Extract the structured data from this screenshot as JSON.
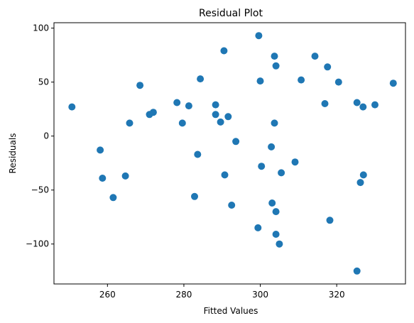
{
  "chart_data": {
    "type": "scatter",
    "title": "Residual Plot",
    "xlabel": "Fitted Values",
    "ylabel": "Residuals",
    "xlim": [
      246,
      338
    ],
    "ylim": [
      -137,
      105
    ],
    "x_ticks": [
      260,
      280,
      300,
      320
    ],
    "y_ticks": [
      100,
      50,
      0,
      -50,
      -100
    ],
    "grid": false,
    "marker_color": "#1f77b4",
    "series": [
      {
        "points": [
          [
            250.7,
            27
          ],
          [
            258.1,
            -13
          ],
          [
            258.7,
            -39
          ],
          [
            261.5,
            -57
          ],
          [
            264.7,
            -37
          ],
          [
            265.8,
            12
          ],
          [
            268.5,
            47
          ],
          [
            271.0,
            20
          ],
          [
            272.0,
            22
          ],
          [
            278.2,
            31
          ],
          [
            279.6,
            12
          ],
          [
            281.3,
            28
          ],
          [
            282.8,
            -56
          ],
          [
            283.6,
            -17
          ],
          [
            284.3,
            53
          ],
          [
            288.3,
            29
          ],
          [
            288.3,
            20
          ],
          [
            289.6,
            13
          ],
          [
            290.5,
            79
          ],
          [
            290.7,
            -36
          ],
          [
            291.6,
            18
          ],
          [
            292.5,
            -64
          ],
          [
            293.6,
            -5
          ],
          [
            299.4,
            -85
          ],
          [
            299.6,
            93
          ],
          [
            300.0,
            51
          ],
          [
            300.3,
            -28
          ],
          [
            302.9,
            -10
          ],
          [
            303.1,
            -62
          ],
          [
            303.7,
            74
          ],
          [
            303.7,
            12
          ],
          [
            304.1,
            65
          ],
          [
            304.1,
            -70
          ],
          [
            304.1,
            -91
          ],
          [
            305.0,
            -100
          ],
          [
            305.5,
            -34
          ],
          [
            309.1,
            -24
          ],
          [
            310.7,
            52
          ],
          [
            314.3,
            74
          ],
          [
            316.9,
            30
          ],
          [
            317.6,
            64
          ],
          [
            318.2,
            -78
          ],
          [
            320.5,
            50
          ],
          [
            325.3,
            31
          ],
          [
            325.3,
            -125
          ],
          [
            326.2,
            -43
          ],
          [
            326.9,
            27
          ],
          [
            327.0,
            -36
          ],
          [
            330.0,
            29
          ],
          [
            334.8,
            49
          ]
        ]
      }
    ]
  }
}
